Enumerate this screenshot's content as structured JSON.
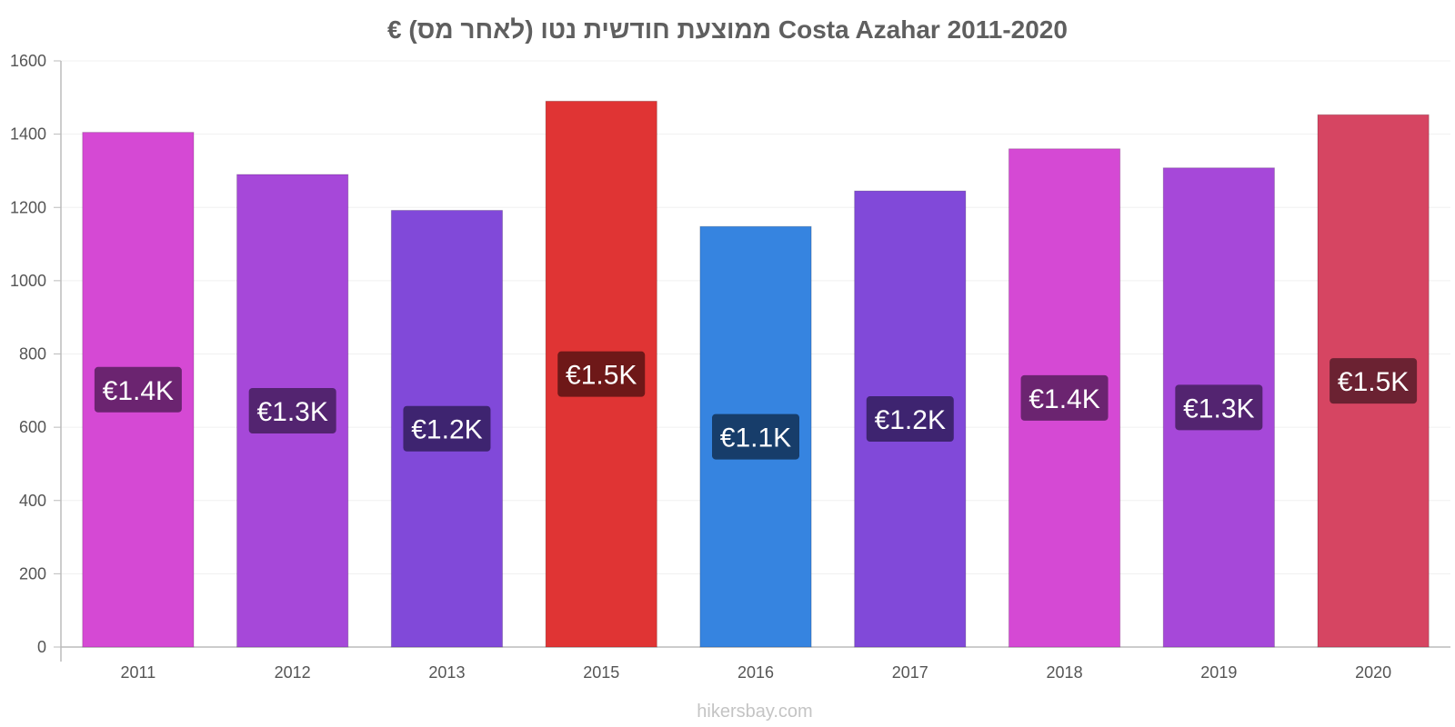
{
  "chart_data": {
    "type": "bar",
    "title": "€ ממוצעת חודשית נטו (לאחר מס) Costa Azahar 2011-2020",
    "xlabel": "",
    "ylabel": "",
    "categories": [
      "2011",
      "2012",
      "2013",
      "2015",
      "2016",
      "2017",
      "2018",
      "2019",
      "2020"
    ],
    "values": [
      1405,
      1290,
      1192,
      1490,
      1148,
      1245,
      1360,
      1308,
      1453
    ],
    "data_labels": [
      "€1.4K",
      "€1.3K",
      "€1.2K",
      "€1.5K",
      "€1.1K",
      "€1.2K",
      "€1.4K",
      "€1.3K",
      "€1.5K"
    ],
    "bar_colors": [
      "#d549d4",
      "#a648d9",
      "#8149d9",
      "#e03434",
      "#3684e0",
      "#8149d9",
      "#d549d4",
      "#a648d9",
      "#d64562"
    ],
    "label_bg_colors": [
      "#6b2470",
      "#532470",
      "#3e2470",
      "#6e1818",
      "#173d6a",
      "#3e2470",
      "#6b2470",
      "#532470",
      "#6b2232"
    ],
    "ylim": [
      0,
      1600
    ],
    "yticks": [
      0,
      200,
      400,
      600,
      800,
      1000,
      1200,
      1400,
      1600
    ],
    "grid": true,
    "legend": "none"
  },
  "watermark": "hikersbay.com"
}
